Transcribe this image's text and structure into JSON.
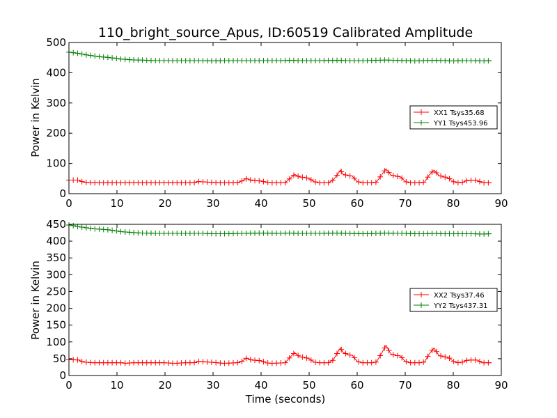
{
  "chart_data": [
    {
      "type": "line",
      "title": "110_bright_source_Apus, ID:60519 Calibrated Amplitude",
      "xlabel": "",
      "ylabel": "Power in Kelvin",
      "xlim": [
        0,
        90
      ],
      "ylim": [
        0,
        500
      ],
      "xticks": [
        0,
        10,
        20,
        30,
        40,
        50,
        60,
        70,
        80,
        90
      ],
      "yticks": [
        0,
        100,
        200,
        300,
        400,
        500
      ],
      "grid": false,
      "legend_position": "center-right",
      "series": [
        {
          "name": "XX1 Tsys35.68",
          "color": "#ff0000",
          "marker": "+",
          "points": [
            [
              0,
              45
            ],
            [
              1,
              45
            ],
            [
              2,
              45
            ],
            [
              3,
              38
            ],
            [
              5,
              36
            ],
            [
              8,
              36
            ],
            [
              12,
              36
            ],
            [
              16,
              36
            ],
            [
              20,
              36
            ],
            [
              24,
              36
            ],
            [
              26,
              36
            ],
            [
              27,
              40
            ],
            [
              29,
              38
            ],
            [
              31,
              36
            ],
            [
              35,
              36
            ],
            [
              36,
              42
            ],
            [
              37,
              50
            ],
            [
              38,
              44
            ],
            [
              40,
              42
            ],
            [
              41,
              38
            ],
            [
              42,
              36
            ],
            [
              45,
              36
            ],
            [
              46,
              50
            ],
            [
              47,
              64
            ],
            [
              48,
              55
            ],
            [
              49,
              54
            ],
            [
              50,
              50
            ],
            [
              51,
              40
            ],
            [
              52,
              36
            ],
            [
              54,
              36
            ],
            [
              55,
              45
            ],
            [
              56,
              65
            ],
            [
              56.5,
              78
            ],
            [
              57,
              65
            ],
            [
              58,
              60
            ],
            [
              59,
              58
            ],
            [
              60,
              40
            ],
            [
              61,
              36
            ],
            [
              63,
              36
            ],
            [
              64,
              38
            ],
            [
              65,
              60
            ],
            [
              66,
              82
            ],
            [
              67,
              62
            ],
            [
              68,
              58
            ],
            [
              69,
              56
            ],
            [
              70,
              40
            ],
            [
              71,
              36
            ],
            [
              73,
              36
            ],
            [
              74,
              38
            ],
            [
              75,
              62
            ],
            [
              76,
              78
            ],
            [
              77,
              60
            ],
            [
              78,
              56
            ],
            [
              79,
              52
            ],
            [
              80,
              40
            ],
            [
              81,
              36
            ],
            [
              82,
              38
            ],
            [
              83,
              44
            ],
            [
              84,
              44
            ],
            [
              85,
              44
            ],
            [
              86,
              36
            ],
            [
              88,
              36
            ]
          ]
        },
        {
          "name": "YY1 Tsys453.96",
          "color": "#008000",
          "marker": "+",
          "points": [
            [
              0,
              468
            ],
            [
              1,
              466
            ],
            [
              2,
              464
            ],
            [
              3,
              461
            ],
            [
              4,
              458
            ],
            [
              5,
              456
            ],
            [
              6,
              454
            ],
            [
              7,
              452
            ],
            [
              8,
              451
            ],
            [
              9,
              449
            ],
            [
              10,
              447
            ],
            [
              11,
              445
            ],
            [
              12,
              444
            ],
            [
              13,
              443
            ],
            [
              14,
              442
            ],
            [
              15,
              442
            ],
            [
              16,
              441
            ],
            [
              18,
              440
            ],
            [
              20,
              440
            ],
            [
              24,
              440
            ],
            [
              28,
              440
            ],
            [
              30,
              439
            ],
            [
              32,
              440
            ],
            [
              36,
              440
            ],
            [
              40,
              440
            ],
            [
              44,
              440
            ],
            [
              46,
              441
            ],
            [
              48,
              440
            ],
            [
              52,
              440
            ],
            [
              56,
              441
            ],
            [
              58,
              440
            ],
            [
              62,
              440
            ],
            [
              66,
              442
            ],
            [
              68,
              441
            ],
            [
              70,
              440
            ],
            [
              72,
              439
            ],
            [
              74,
              440
            ],
            [
              76,
              441
            ],
            [
              78,
              440
            ],
            [
              80,
              439
            ],
            [
              82,
              440
            ],
            [
              84,
              440
            ],
            [
              86,
              439
            ],
            [
              88,
              440
            ]
          ]
        }
      ]
    },
    {
      "type": "line",
      "title": "",
      "xlabel": "Time (seconds)",
      "ylabel": "Power in Kelvin",
      "xlim": [
        0,
        90
      ],
      "ylim": [
        0,
        450
      ],
      "xticks": [
        0,
        10,
        20,
        30,
        40,
        50,
        60,
        70,
        80,
        90
      ],
      "yticks": [
        0,
        50,
        100,
        150,
        200,
        250,
        300,
        350,
        400,
        450
      ],
      "grid": false,
      "legend_position": "center-right",
      "series": [
        {
          "name": "XX2 Tsys37.46",
          "color": "#ff0000",
          "marker": "+",
          "points": [
            [
              0,
              47
            ],
            [
              1,
              47
            ],
            [
              2,
              46
            ],
            [
              3,
              40
            ],
            [
              5,
              38
            ],
            [
              8,
              38
            ],
            [
              11,
              38
            ],
            [
              12,
              36
            ],
            [
              13,
              38
            ],
            [
              16,
              38
            ],
            [
              20,
              38
            ],
            [
              22,
              36
            ],
            [
              24,
              38
            ],
            [
              26,
              38
            ],
            [
              27,
              42
            ],
            [
              29,
              40
            ],
            [
              31,
              38
            ],
            [
              32,
              36
            ],
            [
              35,
              38
            ],
            [
              36,
              42
            ],
            [
              37,
              52
            ],
            [
              38,
              46
            ],
            [
              40,
              44
            ],
            [
              41,
              38
            ],
            [
              42,
              36
            ],
            [
              45,
              38
            ],
            [
              46,
              54
            ],
            [
              47,
              68
            ],
            [
              48,
              56
            ],
            [
              49,
              54
            ],
            [
              50,
              50
            ],
            [
              51,
              40
            ],
            [
              52,
              38
            ],
            [
              54,
              38
            ],
            [
              55,
              46
            ],
            [
              56,
              70
            ],
            [
              56.5,
              82
            ],
            [
              57,
              70
            ],
            [
              58,
              62
            ],
            [
              59,
              60
            ],
            [
              60,
              42
            ],
            [
              61,
              38
            ],
            [
              63,
              38
            ],
            [
              64,
              40
            ],
            [
              65,
              64
            ],
            [
              66,
              90
            ],
            [
              67,
              64
            ],
            [
              68,
              60
            ],
            [
              69,
              58
            ],
            [
              70,
              42
            ],
            [
              71,
              38
            ],
            [
              73,
              38
            ],
            [
              74,
              40
            ],
            [
              75,
              64
            ],
            [
              76,
              82
            ],
            [
              77,
              60
            ],
            [
              78,
              56
            ],
            [
              79,
              54
            ],
            [
              80,
              42
            ],
            [
              81,
              38
            ],
            [
              82,
              40
            ],
            [
              83,
              46
            ],
            [
              84,
              46
            ],
            [
              85,
              46
            ],
            [
              86,
              38
            ],
            [
              88,
              38
            ]
          ]
        },
        {
          "name": "YY2 Tsys437.31",
          "color": "#008000",
          "marker": "+",
          "points": [
            [
              0,
              448
            ],
            [
              1,
              446
            ],
            [
              2,
              443
            ],
            [
              3,
              441
            ],
            [
              4,
              439
            ],
            [
              5,
              437
            ],
            [
              6,
              436
            ],
            [
              7,
              435
            ],
            [
              8,
              434
            ],
            [
              9,
              432
            ],
            [
              10,
              430
            ],
            [
              11,
              428
            ],
            [
              12,
              427
            ],
            [
              13,
              426
            ],
            [
              14,
              425
            ],
            [
              15,
              424
            ],
            [
              16,
              424
            ],
            [
              18,
              423
            ],
            [
              20,
              423
            ],
            [
              24,
              423
            ],
            [
              28,
              423
            ],
            [
              30,
              422
            ],
            [
              32,
              422
            ],
            [
              36,
              423
            ],
            [
              40,
              424
            ],
            [
              44,
              423
            ],
            [
              46,
              424
            ],
            [
              48,
              423
            ],
            [
              52,
              423
            ],
            [
              56,
              424
            ],
            [
              58,
              423
            ],
            [
              62,
              422
            ],
            [
              66,
              424
            ],
            [
              68,
              423
            ],
            [
              70,
              423
            ],
            [
              72,
              422
            ],
            [
              74,
              422
            ],
            [
              76,
              423
            ],
            [
              78,
              422
            ],
            [
              80,
              422
            ],
            [
              82,
              422
            ],
            [
              84,
              422
            ],
            [
              86,
              421
            ],
            [
              88,
              422
            ]
          ]
        }
      ]
    }
  ]
}
